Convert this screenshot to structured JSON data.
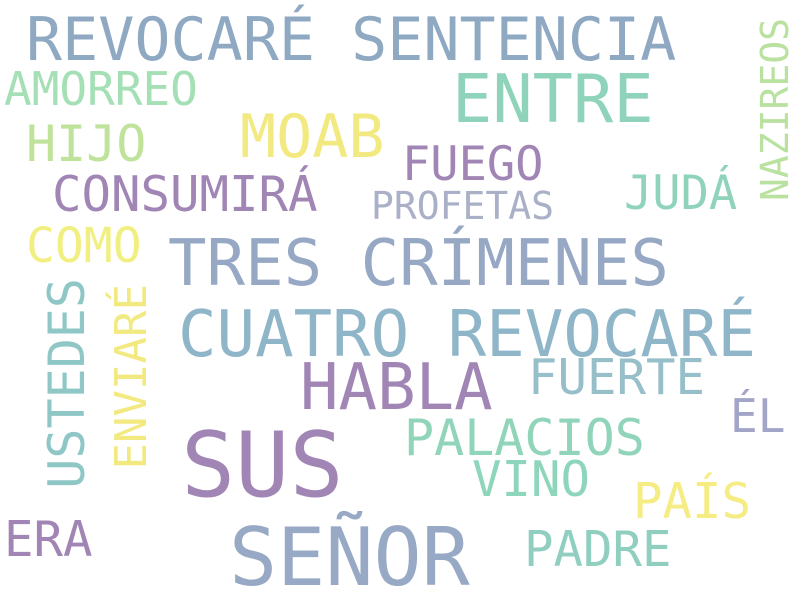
{
  "colors": {
    "blue_gray": "#8fa9c3",
    "mint": "#8fd3bb",
    "light_green": "#b9e1a0",
    "light_yellow": "#f2ea80",
    "purple": "#a186b5",
    "background": "#ffffff"
  },
  "words": [
    {
      "text": "REVOCARÉ SENTENCIA",
      "color": "#8fa9c3"
    },
    {
      "text": "ENTRE",
      "color": "#8fd3bb"
    },
    {
      "text": "AMORREO",
      "color": "#a4dfb5"
    },
    {
      "text": "MOAB",
      "color": "#f2ea80"
    },
    {
      "text": "HIJO",
      "color": "#bfe39a"
    },
    {
      "text": "FUEGO",
      "color": "#a186b5"
    },
    {
      "text": "CONSUMIRÁ",
      "color": "#a186b5"
    },
    {
      "text": "JUDÁ",
      "color": "#8fd3bb"
    },
    {
      "text": "PROFETAS",
      "color": "#a9b0c7"
    },
    {
      "text": "COMO",
      "color": "#f2ef82"
    },
    {
      "text": "TRES CRÍMENES",
      "color": "#96a8c4"
    },
    {
      "text": "CUATRO REVOCARÉ",
      "color": "#8fb5c8"
    },
    {
      "text": "HABLA",
      "color": "#a186b5"
    },
    {
      "text": "FUERTE",
      "color": "#96bfc9"
    },
    {
      "text": "ÉL",
      "color": "#a3a5c8"
    },
    {
      "text": "PALACIOS",
      "color": "#90d4b9"
    },
    {
      "text": "SUS",
      "color": "#a186b5"
    },
    {
      "text": "VINO",
      "color": "#8ed6bb"
    },
    {
      "text": "PAÍS",
      "color": "#f5ec84"
    },
    {
      "text": "ERA",
      "color": "#a186b5"
    },
    {
      "text": "SEÑOR",
      "color": "#97a9c5"
    },
    {
      "text": "PADRE",
      "color": "#90cfc0"
    },
    {
      "text": "NAZIREOS",
      "color": "#b9e1a0"
    },
    {
      "text": "USTEDES",
      "color": "#8fc7c6"
    },
    {
      "text": "ENVIARÉ",
      "color": "#f2ea80"
    }
  ]
}
